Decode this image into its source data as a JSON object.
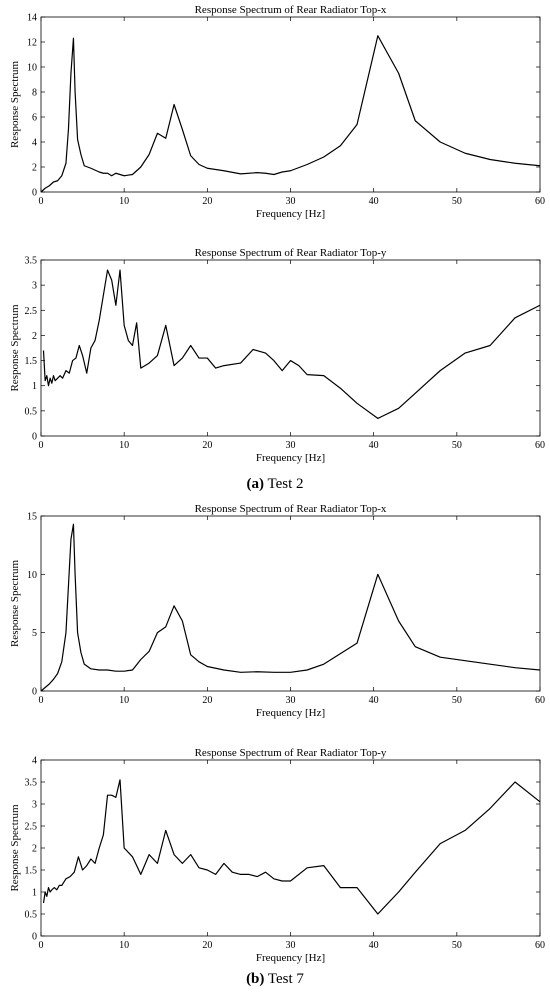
{
  "chart_data": [
    {
      "type": "line",
      "title": "Response Spectrum of Rear Radiator Top-x",
      "xlabel": "Frequency [Hz]",
      "ylabel": "Response Spectrum",
      "xlim": [
        0,
        60
      ],
      "ylim": [
        0,
        14
      ],
      "xticks": [
        0,
        10,
        20,
        30,
        40,
        50,
        60
      ],
      "yticks": [
        0,
        2,
        4,
        6,
        8,
        10,
        12,
        14
      ],
      "grid": false,
      "series": [
        {
          "x": [
            0,
            0.5,
            1,
            1.5,
            2,
            2.5,
            3,
            3.3,
            3.6,
            3.9,
            4.1,
            4.4,
            4.8,
            5.2,
            6,
            7,
            7.5,
            8,
            8.5,
            9,
            10,
            11,
            12,
            13,
            14,
            15,
            16,
            17,
            18,
            19,
            20,
            22,
            24,
            26,
            27,
            28,
            29,
            30,
            32,
            34,
            36,
            38,
            40.5,
            43,
            45,
            48,
            51,
            54,
            57,
            60
          ],
          "y": [
            0,
            0.3,
            0.5,
            0.8,
            0.9,
            1.3,
            2.3,
            5,
            9.5,
            12.3,
            8,
            4.2,
            3,
            2.1,
            1.9,
            1.6,
            1.5,
            1.5,
            1.3,
            1.5,
            1.3,
            1.4,
            2,
            3,
            4.7,
            4.3,
            7,
            5,
            2.9,
            2.2,
            1.9,
            1.7,
            1.45,
            1.55,
            1.5,
            1.4,
            1.6,
            1.7,
            2.2,
            2.8,
            3.7,
            5.4,
            12.5,
            9.5,
            5.7,
            4,
            3.1,
            2.6,
            2.3,
            2.1
          ]
        }
      ]
    },
    {
      "type": "line",
      "title": "Response Spectrum of Rear Radiator Top-y",
      "xlabel": "Frequency [Hz]",
      "ylabel": "Response Spectrum",
      "xlim": [
        0,
        60
      ],
      "ylim": [
        0,
        3.5
      ],
      "xticks": [
        0,
        10,
        20,
        30,
        40,
        50,
        60
      ],
      "yticks": [
        0,
        0.5,
        1,
        1.5,
        2,
        2.5,
        3,
        3.5
      ],
      "grid": false,
      "series": [
        {
          "x": [
            0.3,
            0.5,
            0.7,
            0.9,
            1.1,
            1.3,
            1.5,
            1.7,
            2,
            2.3,
            2.6,
            3,
            3.4,
            3.8,
            4.2,
            4.6,
            5,
            5.5,
            6,
            6.5,
            7,
            7.5,
            8,
            8.5,
            9,
            9.5,
            10,
            10.5,
            11,
            11.5,
            12,
            13,
            14,
            15,
            16,
            17,
            18,
            19,
            20,
            21,
            22,
            24,
            25.5,
            27,
            28,
            29,
            30,
            31,
            32,
            34,
            36,
            38,
            40.5,
            43,
            45,
            48,
            51,
            54,
            57,
            60
          ],
          "y": [
            1.7,
            1.1,
            1.2,
            1.0,
            1.15,
            1.05,
            1.2,
            1.1,
            1.15,
            1.2,
            1.15,
            1.3,
            1.25,
            1.5,
            1.55,
            1.8,
            1.6,
            1.25,
            1.75,
            1.9,
            2.3,
            2.8,
            3.3,
            3.1,
            2.6,
            3.3,
            2.2,
            1.9,
            1.8,
            2.25,
            1.35,
            1.45,
            1.6,
            2.2,
            1.4,
            1.55,
            1.8,
            1.55,
            1.55,
            1.35,
            1.4,
            1.45,
            1.72,
            1.65,
            1.5,
            1.3,
            1.5,
            1.4,
            1.22,
            1.2,
            0.95,
            0.65,
            0.35,
            0.55,
            0.85,
            1.3,
            1.65,
            1.8,
            2.35,
            2.6
          ]
        }
      ]
    },
    {
      "type": "line",
      "title": "Response Spectrum of Rear Radiator Top-x",
      "xlabel": "Frequency [Hz]",
      "ylabel": "Response Spectrum",
      "xlim": [
        0,
        60
      ],
      "ylim": [
        0,
        15
      ],
      "xticks": [
        0,
        10,
        20,
        30,
        40,
        50,
        60
      ],
      "yticks": [
        0,
        5,
        10,
        15
      ],
      "grid": false,
      "series": [
        {
          "x": [
            0,
            0.5,
            1,
            1.5,
            2,
            2.5,
            3,
            3.3,
            3.6,
            3.9,
            4.1,
            4.4,
            4.8,
            5.2,
            6,
            7,
            8,
            9,
            10,
            11,
            12,
            13,
            14,
            15,
            16,
            17,
            18,
            19,
            20,
            22,
            24,
            26,
            28,
            30,
            32,
            34,
            36,
            38,
            40.5,
            43,
            45,
            48,
            51,
            54,
            57,
            60
          ],
          "y": [
            0,
            0.3,
            0.6,
            1,
            1.5,
            2.5,
            5,
            9,
            13,
            14.3,
            10,
            5,
            3.3,
            2.3,
            1.9,
            1.8,
            1.8,
            1.7,
            1.7,
            1.8,
            2.7,
            3.4,
            5,
            5.5,
            7.3,
            6,
            3.1,
            2.5,
            2.1,
            1.8,
            1.6,
            1.65,
            1.6,
            1.6,
            1.8,
            2.3,
            3.2,
            4.1,
            10,
            6,
            3.8,
            2.9,
            2.6,
            2.3,
            2,
            1.8
          ]
        }
      ]
    },
    {
      "type": "line",
      "title": "Response Spectrum of Rear Radiator Top-y",
      "xlabel": "Frequency [Hz]",
      "ylabel": "Response Spectrum",
      "xlim": [
        0,
        60
      ],
      "ylim": [
        0,
        4
      ],
      "xticks": [
        0,
        10,
        20,
        30,
        40,
        50,
        60
      ],
      "yticks": [
        0,
        0.5,
        1,
        1.5,
        2,
        2.5,
        3,
        3.5,
        4
      ],
      "grid": false,
      "series": [
        {
          "x": [
            0.3,
            0.5,
            0.7,
            0.9,
            1.1,
            1.3,
            1.6,
            1.9,
            2.2,
            2.5,
            3,
            3.5,
            4,
            4.5,
            5,
            5.5,
            6,
            6.5,
            7,
            7.5,
            8,
            8.5,
            9,
            9.5,
            10,
            11,
            12,
            13,
            14,
            15,
            16,
            17,
            18,
            19,
            20,
            21,
            22,
            23,
            24,
            25,
            26,
            27,
            28,
            29,
            30,
            32,
            34,
            36,
            38,
            40.5,
            43,
            45,
            48,
            51,
            54,
            57,
            60
          ],
          "y": [
            0.75,
            1.0,
            0.9,
            1.1,
            1.0,
            1.05,
            1.1,
            1.05,
            1.15,
            1.15,
            1.3,
            1.35,
            1.45,
            1.8,
            1.5,
            1.6,
            1.75,
            1.65,
            2.0,
            2.3,
            3.2,
            3.2,
            3.15,
            3.55,
            2.0,
            1.8,
            1.4,
            1.85,
            1.65,
            2.4,
            1.85,
            1.65,
            1.85,
            1.55,
            1.5,
            1.4,
            1.65,
            1.45,
            1.4,
            1.4,
            1.35,
            1.45,
            1.3,
            1.25,
            1.25,
            1.55,
            1.6,
            1.1,
            1.1,
            0.5,
            1.0,
            1.45,
            2.1,
            2.4,
            2.9,
            3.5,
            3.05
          ]
        }
      ]
    }
  ],
  "captions": {
    "a_label": "(a)",
    "a_text": " Test 2",
    "b_label": "(b)",
    "b_text": " Test 7"
  }
}
